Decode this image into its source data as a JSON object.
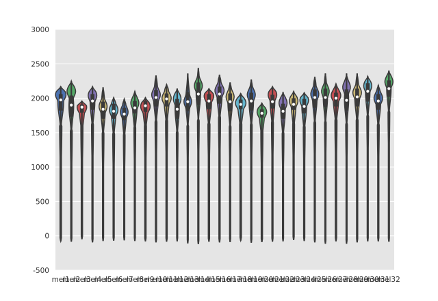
{
  "chart_data": {
    "type": "violin",
    "title": "",
    "xlabel": "",
    "ylabel": "",
    "ylim": [
      -500,
      3000
    ],
    "yticks": [
      3000,
      2500,
      2000,
      1500,
      1000,
      500,
      0,
      -500
    ],
    "grid": true,
    "background": "#e5e5e5",
    "gridColor": "#ffffff",
    "outlineColor": "#3a3a3a",
    "medianColor": "#ffffff",
    "categories": [
      "mel1",
      "mel2",
      "mel3",
      "mel4",
      "mel5",
      "mel6",
      "mel7",
      "mel8",
      "mel9",
      "mel10",
      "mel11",
      "mel12",
      "mel13",
      "mel14",
      "mel15",
      "mel16",
      "mel17",
      "mel18",
      "mel19",
      "mel20",
      "mel21",
      "mel22",
      "mel23",
      "mel24",
      "mel25",
      "mel26",
      "mel27",
      "mel28",
      "mel29",
      "mel30",
      "mel31",
      "mel32"
    ],
    "colors": [
      "#4c72b0",
      "#55a868",
      "#c44e52",
      "#8172b2",
      "#ccb974",
      "#64b5cd",
      "#4c72b0",
      "#55a868",
      "#c44e52",
      "#8172b2",
      "#ccb974",
      "#64b5cd",
      "#4c72b0",
      "#55a868",
      "#c44e52",
      "#8172b2",
      "#ccb974",
      "#64b5cd",
      "#4c72b0",
      "#55a868",
      "#c44e52",
      "#8172b2",
      "#ccb974",
      "#64b5cd",
      "#4c72b0",
      "#55a868",
      "#c44e52",
      "#8172b2",
      "#ccb974",
      "#64b5cd",
      "#4c72b0",
      "#55a868"
    ],
    "medians": [
      1975,
      1900,
      1870,
      1960,
      1840,
      1810,
      1770,
      1860,
      1890,
      2010,
      1990,
      1840,
      1950,
      2060,
      1960,
      2060,
      1950,
      1910,
      1960,
      1780,
      1950,
      1810,
      1910,
      1880,
      2010,
      2010,
      2000,
      1970,
      2020,
      2100,
      1960,
      2140
    ],
    "q1": [
      1820,
      1730,
      1790,
      1830,
      1700,
      1700,
      1680,
      1780,
      1800,
      1880,
      1880,
      1700,
      1810,
      1900,
      1840,
      1920,
      1810,
      1840,
      1820,
      1720,
      1850,
      1700,
      1830,
      1780,
      1860,
      1870,
      1880,
      1820,
      1880,
      1950,
      1830,
      2020
    ],
    "q3": [
      2060,
      2040,
      1910,
      2060,
      1950,
      1920,
      1860,
      1960,
      1960,
      2120,
      2070,
      1990,
      2090,
      2230,
      2060,
      2170,
      2070,
      1980,
      2080,
      1840,
      2050,
      1920,
      2000,
      1990,
      2130,
      2140,
      2080,
      2130,
      2140,
      2220,
      2060,
      2260
    ],
    "mins": [
      -80,
      -85,
      -50,
      -95,
      -75,
      -70,
      -65,
      -75,
      -80,
      -95,
      -85,
      -80,
      -110,
      -120,
      -85,
      -95,
      -90,
      -70,
      -100,
      -90,
      -85,
      -80,
      -60,
      -75,
      -95,
      -115,
      -80,
      -115,
      -95,
      -80,
      -80,
      -85
    ],
    "maxs": [
      2170,
      2250,
      1960,
      2170,
      2160,
      2010,
      1990,
      2100,
      2010,
      2330,
      2200,
      2140,
      2360,
      2440,
      2140,
      2340,
      2230,
      2070,
      2270,
      1930,
      2170,
      2090,
      2100,
      2080,
      2310,
      2360,
      2210,
      2360,
      2360,
      2320,
      2190,
      2400
    ],
    "peaks": [
      2050,
      2100,
      1870,
      2040,
      1880,
      1830,
      1800,
      1930,
      1880,
      2050,
      2000,
      1990,
      1950,
      2180,
      2030,
      2110,
      2020,
      1930,
      2050,
      1800,
      2050,
      1930,
      1960,
      1970,
      2060,
      2100,
      2040,
      2160,
      2080,
      2180,
      2000,
      2240
    ],
    "widths": [
      0.55,
      0.45,
      0.5,
      0.45,
      0.42,
      0.45,
      0.4,
      0.42,
      0.5,
      0.45,
      0.48,
      0.4,
      0.4,
      0.42,
      0.5,
      0.48,
      0.42,
      0.55,
      0.42,
      0.5,
      0.45,
      0.42,
      0.45,
      0.45,
      0.42,
      0.4,
      0.5,
      0.4,
      0.45,
      0.42,
      0.45,
      0.42
    ]
  }
}
